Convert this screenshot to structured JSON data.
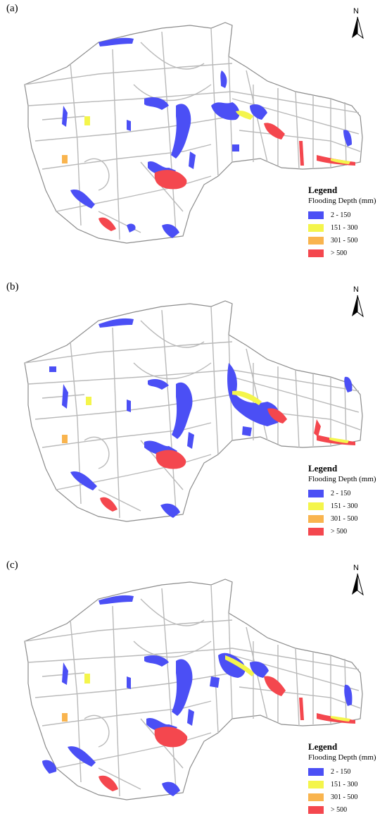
{
  "panels": [
    {
      "label": "(a)"
    },
    {
      "label": "(b)"
    },
    {
      "label": "(c)"
    }
  ],
  "north_arrow": {
    "letter": "N",
    "icon": "north-arrow-icon"
  },
  "legend": {
    "title": "Legend",
    "subtitle": "Flooding Depth (mm)",
    "items": [
      {
        "label": "2 - 150",
        "color": "#4b4ff5"
      },
      {
        "label": "151 - 300",
        "color": "#f4f54b"
      },
      {
        "label": "301 - 500",
        "color": "#f9b44e"
      },
      {
        "label": "> 500",
        "color": "#f4474e"
      }
    ]
  },
  "colors": {
    "road": "#b9b9b9",
    "district_outline": "#8c8c8c",
    "background": "#ffffff"
  }
}
